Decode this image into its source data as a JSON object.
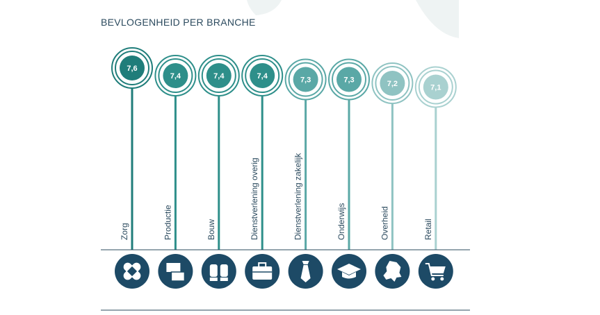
{
  "chart_data": {
    "type": "bar",
    "title": "BEVLOGENHEID PER BRANCHE",
    "categories": [
      "Zorg",
      "Productie",
      "Bouw",
      "Dienstverlening overig",
      "Dienstverlening zakelijk",
      "Onderwijs",
      "Overheid",
      "Retail"
    ],
    "values": [
      7.6,
      7.4,
      7.4,
      7.4,
      7.3,
      7.3,
      7.2,
      7.1
    ],
    "value_labels": [
      "7,6",
      "7,4",
      "7,4",
      "7,4",
      "7,3",
      "7,3",
      "7,2",
      "7,1"
    ],
    "icons": [
      "bandage-icon",
      "boxes-icon",
      "gloves-icon",
      "briefcase-icon",
      "tie-icon",
      "graduation-cap-icon",
      "netherlands-map-icon",
      "shopping-cart-icon"
    ],
    "colors": [
      "#1f7d7a",
      "#2e8f8a",
      "#2e8f8a",
      "#2e8f8a",
      "#5aa8a6",
      "#5aa8a6",
      "#8fc3c2",
      "#a9d1d0"
    ],
    "icon_color": "#1d4a66",
    "line_color": "#2b4a5e"
  }
}
